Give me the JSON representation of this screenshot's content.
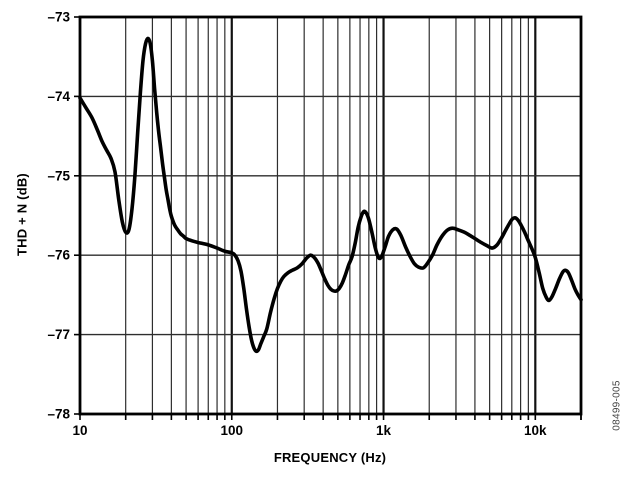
{
  "figure": {
    "watermark": "08499-005",
    "background": "#ffffff"
  },
  "chart_data": {
    "type": "line",
    "title": "",
    "xlabel": "FREQUENCY (Hz)",
    "ylabel": "THD + N (dB)",
    "x_scale": "log",
    "xlim": [
      10,
      20000
    ],
    "ylim": [
      -78,
      -73
    ],
    "grid": "on",
    "legend": "none",
    "line_color": "#000000",
    "grid_color_minor": "#2e2e2e",
    "grid_color_major": "#111111",
    "frame_color": "#000000",
    "x_ticks": [
      {
        "value": 10,
        "label": "10"
      },
      {
        "value": 100,
        "label": "100"
      },
      {
        "value": 1000,
        "label": "1k"
      },
      {
        "value": 10000,
        "label": "10k"
      }
    ],
    "y_ticks": [
      {
        "value": -73,
        "label": "–73"
      },
      {
        "value": -74,
        "label": "–74"
      },
      {
        "value": -75,
        "label": "–75"
      },
      {
        "value": -76,
        "label": "–76"
      },
      {
        "value": -77,
        "label": "–77"
      },
      {
        "value": -78,
        "label": "–78"
      }
    ],
    "series": [
      {
        "name": "THD + N",
        "points": [
          [
            10,
            -74.02
          ],
          [
            11,
            -74.15
          ],
          [
            12,
            -74.27
          ],
          [
            13,
            -74.42
          ],
          [
            14,
            -74.57
          ],
          [
            15,
            -74.68
          ],
          [
            16,
            -74.78
          ],
          [
            17,
            -74.95
          ],
          [
            18,
            -75.3
          ],
          [
            19,
            -75.58
          ],
          [
            20,
            -75.71
          ],
          [
            21,
            -75.68
          ],
          [
            22,
            -75.42
          ],
          [
            23,
            -75.0
          ],
          [
            24,
            -74.45
          ],
          [
            25,
            -73.95
          ],
          [
            26,
            -73.55
          ],
          [
            27,
            -73.34
          ],
          [
            28,
            -73.27
          ],
          [
            29,
            -73.33
          ],
          [
            30,
            -73.55
          ],
          [
            31,
            -73.9
          ],
          [
            32,
            -74.2
          ],
          [
            33,
            -74.45
          ],
          [
            34,
            -74.65
          ],
          [
            35,
            -74.85
          ],
          [
            36,
            -75.02
          ],
          [
            37,
            -75.18
          ],
          [
            38,
            -75.3
          ],
          [
            39,
            -75.42
          ],
          [
            40,
            -75.51
          ],
          [
            42,
            -75.62
          ],
          [
            44,
            -75.68
          ],
          [
            46,
            -75.73
          ],
          [
            48,
            -75.76
          ],
          [
            50,
            -75.79
          ],
          [
            55,
            -75.82
          ],
          [
            60,
            -75.84
          ],
          [
            70,
            -75.87
          ],
          [
            80,
            -75.91
          ],
          [
            90,
            -75.95
          ],
          [
            100,
            -75.97
          ],
          [
            105,
            -76.0
          ],
          [
            110,
            -76.07
          ],
          [
            115,
            -76.2
          ],
          [
            120,
            -76.42
          ],
          [
            125,
            -76.68
          ],
          [
            130,
            -76.9
          ],
          [
            135,
            -77.07
          ],
          [
            140,
            -77.17
          ],
          [
            145,
            -77.21
          ],
          [
            150,
            -77.19
          ],
          [
            155,
            -77.12
          ],
          [
            162,
            -77.03
          ],
          [
            170,
            -76.93
          ],
          [
            180,
            -76.72
          ],
          [
            190,
            -76.55
          ],
          [
            200,
            -76.42
          ],
          [
            210,
            -76.33
          ],
          [
            220,
            -76.27
          ],
          [
            235,
            -76.22
          ],
          [
            250,
            -76.19
          ],
          [
            270,
            -76.16
          ],
          [
            290,
            -76.11
          ],
          [
            310,
            -76.04
          ],
          [
            330,
            -76.0
          ],
          [
            350,
            -76.03
          ],
          [
            370,
            -76.1
          ],
          [
            390,
            -76.2
          ],
          [
            410,
            -76.3
          ],
          [
            430,
            -76.38
          ],
          [
            450,
            -76.43
          ],
          [
            470,
            -76.45
          ],
          [
            490,
            -76.45
          ],
          [
            510,
            -76.42
          ],
          [
            535,
            -76.35
          ],
          [
            560,
            -76.25
          ],
          [
            590,
            -76.12
          ],
          [
            620,
            -76.02
          ],
          [
            650,
            -75.85
          ],
          [
            680,
            -75.65
          ],
          [
            710,
            -75.52
          ],
          [
            740,
            -75.45
          ],
          [
            770,
            -75.47
          ],
          [
            800,
            -75.55
          ],
          [
            840,
            -75.72
          ],
          [
            880,
            -75.9
          ],
          [
            920,
            -76.02
          ],
          [
            950,
            -76.04
          ],
          [
            980,
            -76.0
          ],
          [
            1030,
            -75.88
          ],
          [
            1080,
            -75.76
          ],
          [
            1150,
            -75.68
          ],
          [
            1220,
            -75.67
          ],
          [
            1300,
            -75.75
          ],
          [
            1400,
            -75.9
          ],
          [
            1500,
            -76.02
          ],
          [
            1600,
            -76.11
          ],
          [
            1700,
            -76.15
          ],
          [
            1830,
            -76.16
          ],
          [
            1950,
            -76.1
          ],
          [
            2100,
            -76.0
          ],
          [
            2250,
            -75.87
          ],
          [
            2450,
            -75.75
          ],
          [
            2650,
            -75.68
          ],
          [
            2850,
            -75.66
          ],
          [
            3100,
            -75.68
          ],
          [
            3400,
            -75.71
          ],
          [
            3700,
            -75.75
          ],
          [
            4000,
            -75.79
          ],
          [
            4400,
            -75.84
          ],
          [
            4800,
            -75.88
          ],
          [
            5200,
            -75.91
          ],
          [
            5600,
            -75.87
          ],
          [
            6000,
            -75.78
          ],
          [
            6400,
            -75.68
          ],
          [
            6800,
            -75.59
          ],
          [
            7100,
            -75.54
          ],
          [
            7400,
            -75.53
          ],
          [
            7700,
            -75.56
          ],
          [
            8000,
            -75.61
          ],
          [
            8500,
            -75.71
          ],
          [
            9000,
            -75.82
          ],
          [
            9500,
            -75.92
          ],
          [
            10000,
            -76.03
          ],
          [
            10600,
            -76.22
          ],
          [
            11200,
            -76.42
          ],
          [
            11800,
            -76.53
          ],
          [
            12300,
            -76.57
          ],
          [
            12900,
            -76.52
          ],
          [
            13600,
            -76.42
          ],
          [
            14400,
            -76.3
          ],
          [
            15200,
            -76.21
          ],
          [
            15800,
            -76.19
          ],
          [
            16500,
            -76.22
          ],
          [
            17300,
            -76.31
          ],
          [
            18200,
            -76.42
          ],
          [
            19100,
            -76.5
          ],
          [
            20000,
            -76.56
          ]
        ]
      }
    ]
  }
}
